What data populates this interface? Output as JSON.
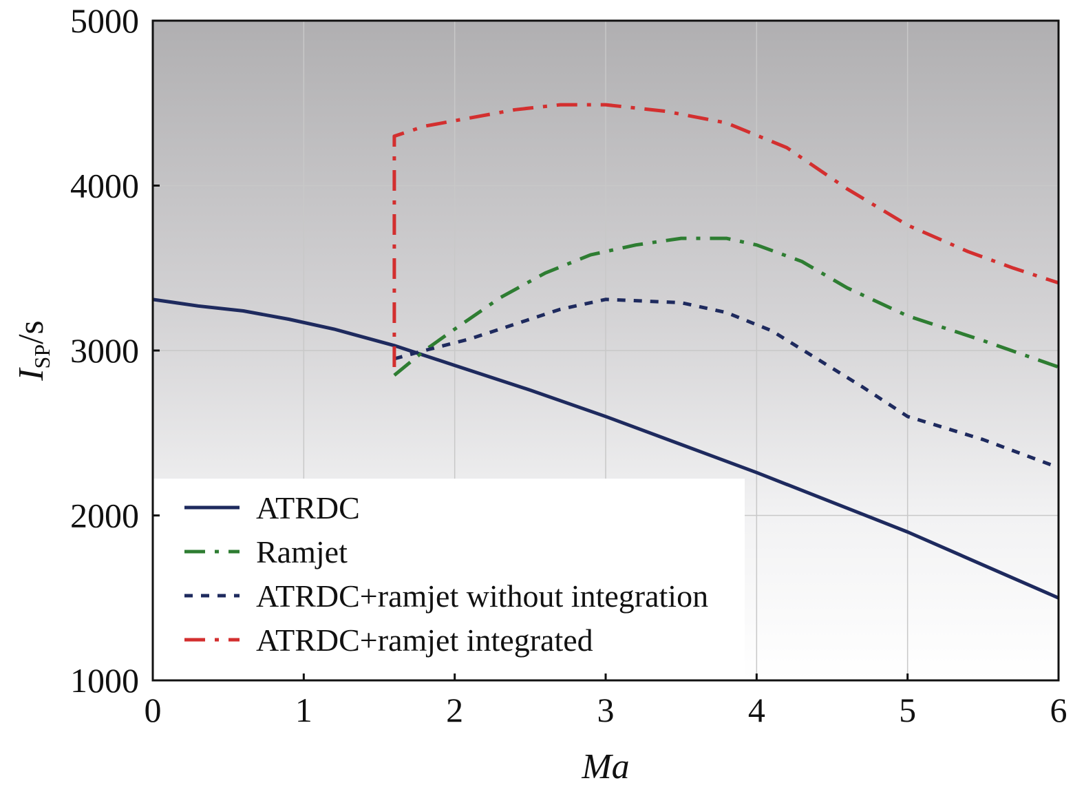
{
  "chart_data": {
    "type": "line",
    "xlabel": "Ma",
    "ylabel": {
      "main": "I",
      "sub": "SP",
      "unit": "/s"
    },
    "xlim": [
      0,
      6
    ],
    "ylim": [
      1000,
      5000
    ],
    "x_ticks": [
      "0",
      "1",
      "2",
      "3",
      "4",
      "5",
      "6"
    ],
    "y_ticks": [
      "1000",
      "2000",
      "3000",
      "4000",
      "5000"
    ],
    "grid": true,
    "legend_position": "bottom-left",
    "series": [
      {
        "name": "ATRDC",
        "color": "#1e2a5e",
        "style": "solid",
        "points": [
          [
            0,
            3310
          ],
          [
            0.3,
            3270
          ],
          [
            0.6,
            3240
          ],
          [
            0.9,
            3190
          ],
          [
            1.2,
            3130
          ],
          [
            1.6,
            3030
          ],
          [
            2.0,
            2910
          ],
          [
            2.5,
            2760
          ],
          [
            3.0,
            2600
          ],
          [
            3.5,
            2430
          ],
          [
            4.0,
            2260
          ],
          [
            4.5,
            2080
          ],
          [
            5.0,
            1900
          ],
          [
            5.5,
            1700
          ],
          [
            6.0,
            1500
          ]
        ]
      },
      {
        "name": "Ramjet",
        "color": "#2e7d32",
        "style": "dash-dot",
        "points": [
          [
            1.6,
            2850
          ],
          [
            1.8,
            3000
          ],
          [
            2.0,
            3130
          ],
          [
            2.3,
            3320
          ],
          [
            2.6,
            3470
          ],
          [
            2.9,
            3580
          ],
          [
            3.2,
            3640
          ],
          [
            3.5,
            3680
          ],
          [
            3.8,
            3680
          ],
          [
            4.0,
            3640
          ],
          [
            4.3,
            3540
          ],
          [
            4.6,
            3380
          ],
          [
            5.0,
            3210
          ],
          [
            5.5,
            3060
          ],
          [
            6.0,
            2900
          ]
        ]
      },
      {
        "name": "ATRDC+ramjet without integration",
        "color": "#1e2a5e",
        "style": "dotted",
        "points": [
          [
            1.6,
            2950
          ],
          [
            1.8,
            3000
          ],
          [
            2.1,
            3070
          ],
          [
            2.4,
            3160
          ],
          [
            2.7,
            3250
          ],
          [
            3.0,
            3310
          ],
          [
            3.5,
            3290
          ],
          [
            3.8,
            3230
          ],
          [
            4.1,
            3120
          ],
          [
            4.4,
            2950
          ],
          [
            4.7,
            2780
          ],
          [
            5.0,
            2600
          ],
          [
            5.5,
            2460
          ],
          [
            6.0,
            2290
          ]
        ]
      },
      {
        "name": "ATRDC+ramjet integrated",
        "color": "#d32f2f",
        "style": "dash-dot",
        "points": [
          [
            1.6,
            2900
          ],
          [
            1.6,
            4300
          ],
          [
            1.8,
            4360
          ],
          [
            2.1,
            4410
          ],
          [
            2.4,
            4460
          ],
          [
            2.7,
            4490
          ],
          [
            3.0,
            4490
          ],
          [
            3.4,
            4450
          ],
          [
            3.8,
            4380
          ],
          [
            4.2,
            4230
          ],
          [
            4.6,
            3980
          ],
          [
            5.0,
            3760
          ],
          [
            5.4,
            3600
          ],
          [
            5.7,
            3500
          ],
          [
            6.0,
            3410
          ]
        ]
      }
    ]
  }
}
